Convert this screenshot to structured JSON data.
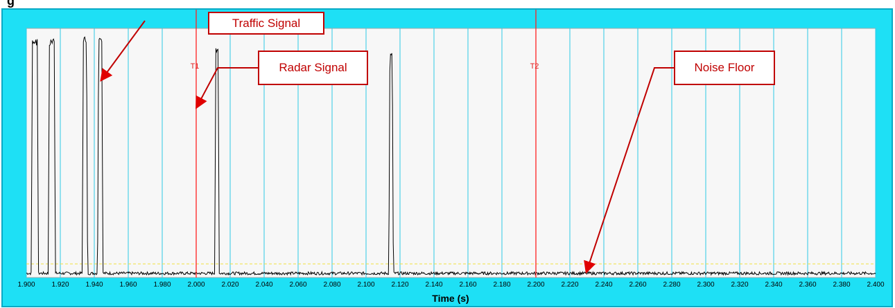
{
  "page": {
    "title_fragment": "g"
  },
  "chart_data": {
    "type": "line",
    "xlabel": "Time (s)",
    "ylabel": "",
    "xlim": [
      1.9,
      2.4
    ],
    "ylim": [
      0,
      1
    ],
    "grid": true,
    "x_ticks": [
      "1.900",
      "1.920",
      "1.940",
      "1.960",
      "1.980",
      "2.000",
      "2.020",
      "2.040",
      "2.060",
      "2.080",
      "2.100",
      "2.120",
      "2.140",
      "2.160",
      "2.180",
      "2.200",
      "2.220",
      "2.240",
      "2.260",
      "2.280",
      "2.300",
      "2.320",
      "2.340",
      "2.360",
      "2.380",
      "2.400"
    ],
    "series": [
      {
        "color": "#000000",
        "noise_level": 0.017,
        "pulses": [
          {
            "start": 1.9035,
            "end": 1.9065,
            "peak": 0.96
          },
          {
            "start": 1.9135,
            "end": 1.9165,
            "peak": 0.96
          },
          {
            "start": 1.9335,
            "end": 1.9355,
            "peak": 0.97
          },
          {
            "start": 1.9425,
            "end": 1.9445,
            "peak": 0.96
          },
          {
            "start": 2.0115,
            "end": 2.013,
            "peak": 0.93
          },
          {
            "start": 2.114,
            "end": 2.1155,
            "peak": 0.92
          }
        ]
      }
    ],
    "threshold": {
      "y": 0.055,
      "color": "#f0e040"
    },
    "cursors": [
      {
        "label": "T1",
        "x": 2.0,
        "color": "#ff2020"
      },
      {
        "label": "T2",
        "x": 2.2,
        "color": "#ff2020"
      }
    ],
    "annotations": [
      {
        "text": "Traffic Signal",
        "target_x": 1.943,
        "target_y": 0.79
      },
      {
        "text": "Radar Signal",
        "target_x": 2.0,
        "target_y": 0.68
      },
      {
        "text": "Noise Floor",
        "target_x": 2.228,
        "target_y": 0.02
      }
    ],
    "colors": {
      "panel": "#1ee0f5",
      "plot_background": "#f7f7f7",
      "grid": "#2ec8e6",
      "annotation": "#c00000"
    }
  }
}
